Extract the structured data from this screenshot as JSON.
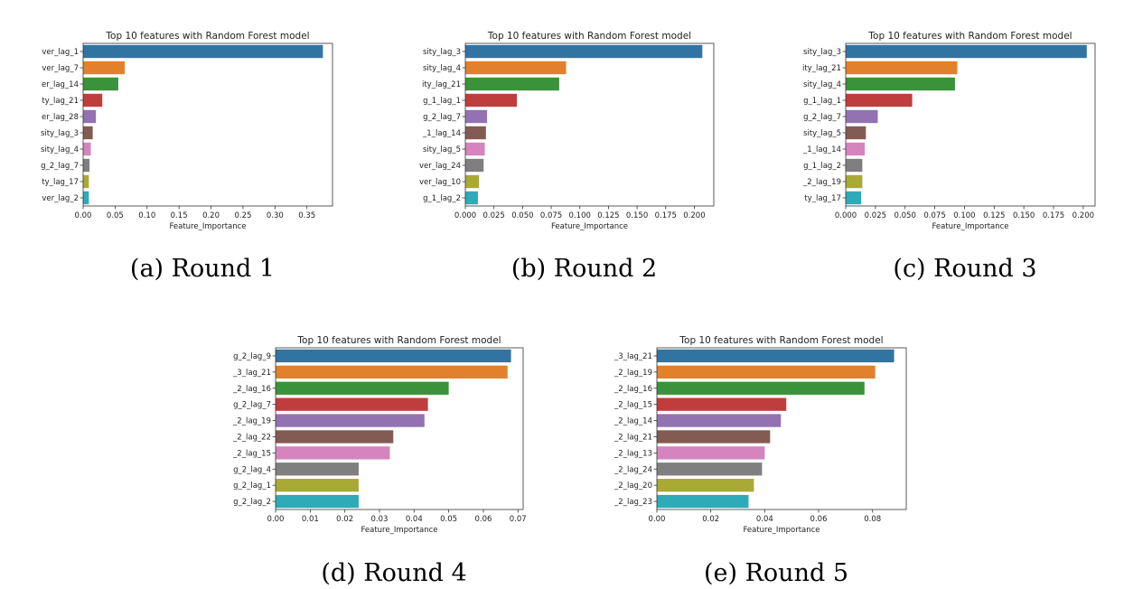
{
  "panels": [
    {
      "caption": "(a) Round 1"
    },
    {
      "caption": "(b) Round 2"
    },
    {
      "caption": "(c) Round 3"
    },
    {
      "caption": "(d) Round 4"
    },
    {
      "caption": "(e) Round 5"
    }
  ],
  "colors": [
    "#3274a1",
    "#e1812c",
    "#3a923a",
    "#c03d3e",
    "#9372b2",
    "#845b53",
    "#d684bd",
    "#7f7f7f",
    "#a9aa35",
    "#2eaab8"
  ],
  "chart_data": [
    {
      "type": "bar",
      "orientation": "horizontal",
      "title": "Top 10 features with Random Forest model",
      "xlabel": "Feature_Importance",
      "ylabel": "",
      "categories": [
        "ver_lag_1",
        "ver_lag_7",
        "er_lag_14",
        "ty_lag_21",
        "er_lag_28",
        "sity_lag_3",
        "sity_lag_4",
        "g_2_lag_7",
        "ty_lag_17",
        "ver_lag_2"
      ],
      "values": [
        0.375,
        0.065,
        0.055,
        0.03,
        0.02,
        0.015,
        0.012,
        0.01,
        0.009,
        0.009
      ],
      "xlim": [
        0,
        0.39
      ],
      "xticks": [
        0.0,
        0.05,
        0.1,
        0.15,
        0.2,
        0.25,
        0.3,
        0.35
      ],
      "xtick_labels": [
        "0.00",
        "0.05",
        "0.10",
        "0.15",
        "0.20",
        "0.25",
        "0.30",
        "0.35"
      ],
      "grid": false
    },
    {
      "type": "bar",
      "orientation": "horizontal",
      "title": "Top 10 features with Random Forest model",
      "xlabel": "Feature_Importance",
      "ylabel": "",
      "categories": [
        "sity_lag_3",
        "sity_lag_4",
        "ity_lag_21",
        "g_1_lag_1",
        "g_2_lag_7",
        "_1_lag_14",
        "sity_lag_5",
        "ver_lag_24",
        "ver_lag_10",
        "g_1_lag_2"
      ],
      "values": [
        0.207,
        0.088,
        0.082,
        0.045,
        0.019,
        0.018,
        0.017,
        0.016,
        0.012,
        0.011
      ],
      "xlim": [
        0,
        0.217
      ],
      "xticks": [
        0.0,
        0.025,
        0.05,
        0.075,
        0.1,
        0.125,
        0.15,
        0.175,
        0.2
      ],
      "xtick_labels": [
        "0.000",
        "0.025",
        "0.050",
        "0.075",
        "0.100",
        "0.125",
        "0.150",
        "0.175",
        "0.200"
      ],
      "grid": false
    },
    {
      "type": "bar",
      "orientation": "horizontal",
      "title": "Top 10 features with Random Forest model",
      "xlabel": "Feature_Importance",
      "ylabel": "",
      "categories": [
        "sity_lag_3",
        "ity_lag_21",
        "sity_lag_4",
        "g_1_lag_1",
        "g_2_lag_7",
        "sity_lag_5",
        "_1_lag_14",
        "g_1_lag_2",
        "_2_lag_19",
        "ty_lag_17"
      ],
      "values": [
        0.203,
        0.094,
        0.092,
        0.056,
        0.027,
        0.017,
        0.016,
        0.014,
        0.014,
        0.013
      ],
      "xlim": [
        0,
        0.21
      ],
      "xticks": [
        0.0,
        0.025,
        0.05,
        0.075,
        0.1,
        0.125,
        0.15,
        0.175,
        0.2
      ],
      "xtick_labels": [
        "0.000",
        "0.025",
        "0.050",
        "0.075",
        "0.100",
        "0.125",
        "0.150",
        "0.175",
        "0.200"
      ],
      "grid": false
    },
    {
      "type": "bar",
      "orientation": "horizontal",
      "title": "Top 10 features with Random Forest model",
      "xlabel": "Feature_Importance",
      "ylabel": "",
      "categories": [
        "g_2_lag_9",
        "_3_lag_21",
        "_2_lag_16",
        "g_2_lag_7",
        "_2_lag_19",
        "_2_lag_22",
        "_2_lag_15",
        "g_2_lag_4",
        "g_2_lag_1",
        "g_2_lag_2"
      ],
      "values": [
        0.068,
        0.067,
        0.05,
        0.044,
        0.043,
        0.034,
        0.033,
        0.024,
        0.024,
        0.024
      ],
      "xlim": [
        0,
        0.0715
      ],
      "xticks": [
        0.0,
        0.01,
        0.02,
        0.03,
        0.04,
        0.05,
        0.06,
        0.07
      ],
      "xtick_labels": [
        "0.00",
        "0.01",
        "0.02",
        "0.03",
        "0.04",
        "0.05",
        "0.06",
        "0.07"
      ],
      "grid": false
    },
    {
      "type": "bar",
      "orientation": "horizontal",
      "title": "Top 10 features with Random Forest model",
      "xlabel": "Feature_Importance",
      "ylabel": "",
      "categories": [
        "_3_lag_21",
        "_2_lag_19",
        "_2_lag_16",
        "_2_lag_15",
        "_2_lag_14",
        "_2_lag_21",
        "_2_lag_13",
        "_2_lag_24",
        "_2_lag_20",
        "_2_lag_23"
      ],
      "values": [
        0.088,
        0.081,
        0.077,
        0.048,
        0.046,
        0.042,
        0.04,
        0.039,
        0.036,
        0.034
      ],
      "xlim": [
        0,
        0.0925
      ],
      "xticks": [
        0.0,
        0.02,
        0.04,
        0.06,
        0.08
      ],
      "xtick_labels": [
        "0.00",
        "0.02",
        "0.04",
        "0.06",
        "0.08"
      ],
      "grid": false
    }
  ]
}
